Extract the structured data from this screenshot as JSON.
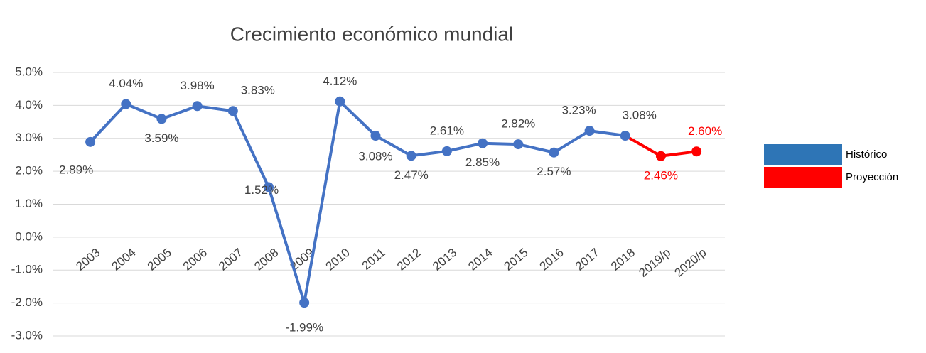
{
  "chart_data": {
    "type": "line",
    "title": "Crecimiento económico mundial",
    "categories": [
      "2003",
      "2004",
      "2005",
      "2006",
      "2007",
      "2008",
      "2009",
      "2010",
      "2011",
      "2012",
      "2013",
      "2014",
      "2015",
      "2016",
      "2017",
      "2018",
      "2019/p",
      "2020/p"
    ],
    "series": [
      {
        "name": "Histórico",
        "color": "#4472c4",
        "values": [
          2.89,
          4.04,
          3.59,
          3.98,
          3.83,
          1.52,
          -1.99,
          4.12,
          3.08,
          2.47,
          2.61,
          2.85,
          2.82,
          2.57,
          3.23,
          3.08,
          null,
          null
        ],
        "value_labels": [
          "2.89%",
          "4.04%",
          "3.59%",
          "3.98%",
          "3.83%",
          "1.52%",
          "-1.99%",
          "4.12%",
          "3.08%",
          "2.47%",
          "2.61%",
          "2.85%",
          "2.82%",
          "2.57%",
          "3.23%",
          "3.08%",
          null,
          null
        ]
      },
      {
        "name": "Proyección",
        "color": "#ff0000",
        "values": [
          null,
          null,
          null,
          null,
          null,
          null,
          null,
          null,
          null,
          null,
          null,
          null,
          null,
          null,
          null,
          3.08,
          2.46,
          2.6
        ],
        "value_labels": [
          null,
          null,
          null,
          null,
          null,
          null,
          null,
          null,
          null,
          null,
          null,
          null,
          null,
          null,
          null,
          null,
          "2.46%",
          "2.60%"
        ]
      }
    ],
    "ylim": [
      -3,
      5
    ],
    "yticks": [
      {
        "value": -3,
        "label": "-3.0%"
      },
      {
        "value": -2,
        "label": "-2.0%"
      },
      {
        "value": -1,
        "label": "-1.0%"
      },
      {
        "value": 0,
        "label": "0.0%"
      },
      {
        "value": 1,
        "label": "1.0%"
      },
      {
        "value": 2,
        "label": "2.0%"
      },
      {
        "value": 3,
        "label": "3.0%"
      },
      {
        "value": 4,
        "label": "4.0%"
      },
      {
        "value": 5,
        "label": "5.0%"
      }
    ],
    "grid": true,
    "legend": "right"
  }
}
